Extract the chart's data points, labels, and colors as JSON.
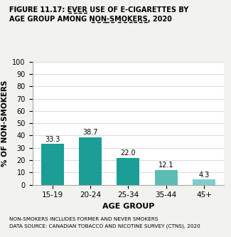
{
  "categories": [
    "15-19",
    "20-24",
    "25-34",
    "35-44",
    "45+"
  ],
  "values": [
    33.3,
    38.7,
    22.0,
    12.1,
    4.3
  ],
  "bar_colors": [
    "#1a9e96",
    "#1a9e96",
    "#1a9e96",
    "#5bbcb4",
    "#7dceca"
  ],
  "xlabel": "AGE GROUP",
  "ylabel": "% OF NON-SMOKERS",
  "ylim": [
    0,
    100
  ],
  "yticks": [
    0,
    10,
    20,
    30,
    40,
    50,
    60,
    70,
    80,
    90,
    100
  ],
  "footnote1": "NON-SMOKERS INCLUDES FORMER AND NEVER SMOKERS",
  "footnote2": "DATA SOURCE: CANADIAN TOBACCO AND NICOTINE SURVEY (CTNS), 2020",
  "bg_color": "#f2f2ee",
  "plot_bg_color": "#ffffff",
  "title_prefix": "FIGURE 11.17: ",
  "title_underline1": "EVER",
  "title_middle": " USE OF E-CIGARETTES BY\nAGE GROUP AMONG ",
  "title_underline2": "NON-SMOKERS",
  "title_suffix": ", 2020"
}
